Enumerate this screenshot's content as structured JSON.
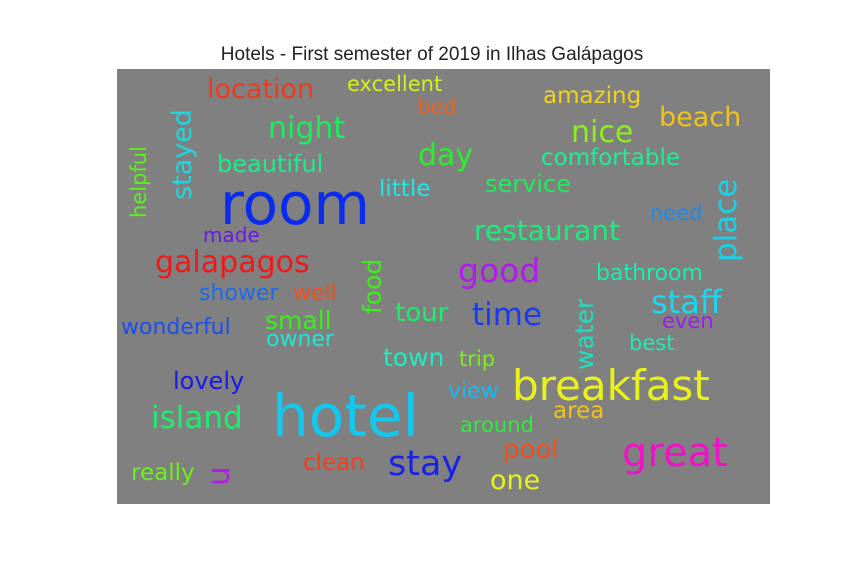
{
  "chart_data": {
    "type": "wordcloud",
    "title": "Hotels - First semester of 2019 in Ilhas Galápagos",
    "background_color": "#808080",
    "words": [
      {
        "text": "room",
        "color": "#0a2bf0"
      },
      {
        "text": "hotel",
        "color": "#12c8ee"
      },
      {
        "text": "breakfast",
        "color": "#e8f21a"
      },
      {
        "text": "great",
        "color": "#f012c8"
      },
      {
        "text": "stay",
        "color": "#1a22e8"
      },
      {
        "text": "galapagos",
        "color": "#ee1a1a"
      },
      {
        "text": "good",
        "color": "#b21af0"
      },
      {
        "text": "staff",
        "color": "#1ad8f0"
      },
      {
        "text": "time",
        "color": "#1a3af0"
      },
      {
        "text": "place",
        "color": "#1ad0e8"
      },
      {
        "text": "island",
        "color": "#1aee6a"
      },
      {
        "text": "nice",
        "color": "#8cf01a"
      },
      {
        "text": "night",
        "color": "#1aee5a"
      },
      {
        "text": "day",
        "color": "#2aee2a"
      },
      {
        "text": "restaurant",
        "color": "#1aee7a"
      },
      {
        "text": "location",
        "color": "#ee3a1a"
      },
      {
        "text": "beach",
        "color": "#f0c21a"
      },
      {
        "text": "stayed",
        "color": "#1ad8e0"
      },
      {
        "text": "beautiful",
        "color": "#1aee8a"
      },
      {
        "text": "service",
        "color": "#1aee5a"
      },
      {
        "text": "comfortable",
        "color": "#1aee9a"
      },
      {
        "text": "amazing",
        "color": "#f0d21a"
      },
      {
        "text": "excellent",
        "color": "#d2f01a"
      },
      {
        "text": "little",
        "color": "#1ae8e8"
      },
      {
        "text": "tour",
        "color": "#1aee6a"
      },
      {
        "text": "small",
        "color": "#3aee1a"
      },
      {
        "text": "town",
        "color": "#1aeebe"
      },
      {
        "text": "water",
        "color": "#1ae0be"
      },
      {
        "text": "food",
        "color": "#3aee1a"
      },
      {
        "text": "pool",
        "color": "#f0501a"
      },
      {
        "text": "view",
        "color": "#1ab8f0"
      },
      {
        "text": "area",
        "color": "#f0c21a"
      },
      {
        "text": "one",
        "color": "#e8f01a"
      },
      {
        "text": "clean",
        "color": "#f0401a"
      },
      {
        "text": "really",
        "color": "#6af01a"
      },
      {
        "text": "u",
        "color": "#b21af0"
      },
      {
        "text": "lovely",
        "color": "#1a1ae8"
      },
      {
        "text": "wonderful",
        "color": "#1a50f0"
      },
      {
        "text": "shower",
        "color": "#1a6af0"
      },
      {
        "text": "well",
        "color": "#f0501a"
      },
      {
        "text": "owner",
        "color": "#1ae8d2"
      },
      {
        "text": "bathroom",
        "color": "#1aeeae"
      },
      {
        "text": "need",
        "color": "#1a8cf0"
      },
      {
        "text": "even",
        "color": "#a01af0"
      },
      {
        "text": "best",
        "color": "#1aeeae"
      },
      {
        "text": "trip",
        "color": "#7af01a"
      },
      {
        "text": "around",
        "color": "#2aee3a"
      },
      {
        "text": "helpful",
        "color": "#5af01a"
      },
      {
        "text": "made",
        "color": "#6a1ae8"
      },
      {
        "text": "bed",
        "color": "#f0601a"
      }
    ]
  }
}
